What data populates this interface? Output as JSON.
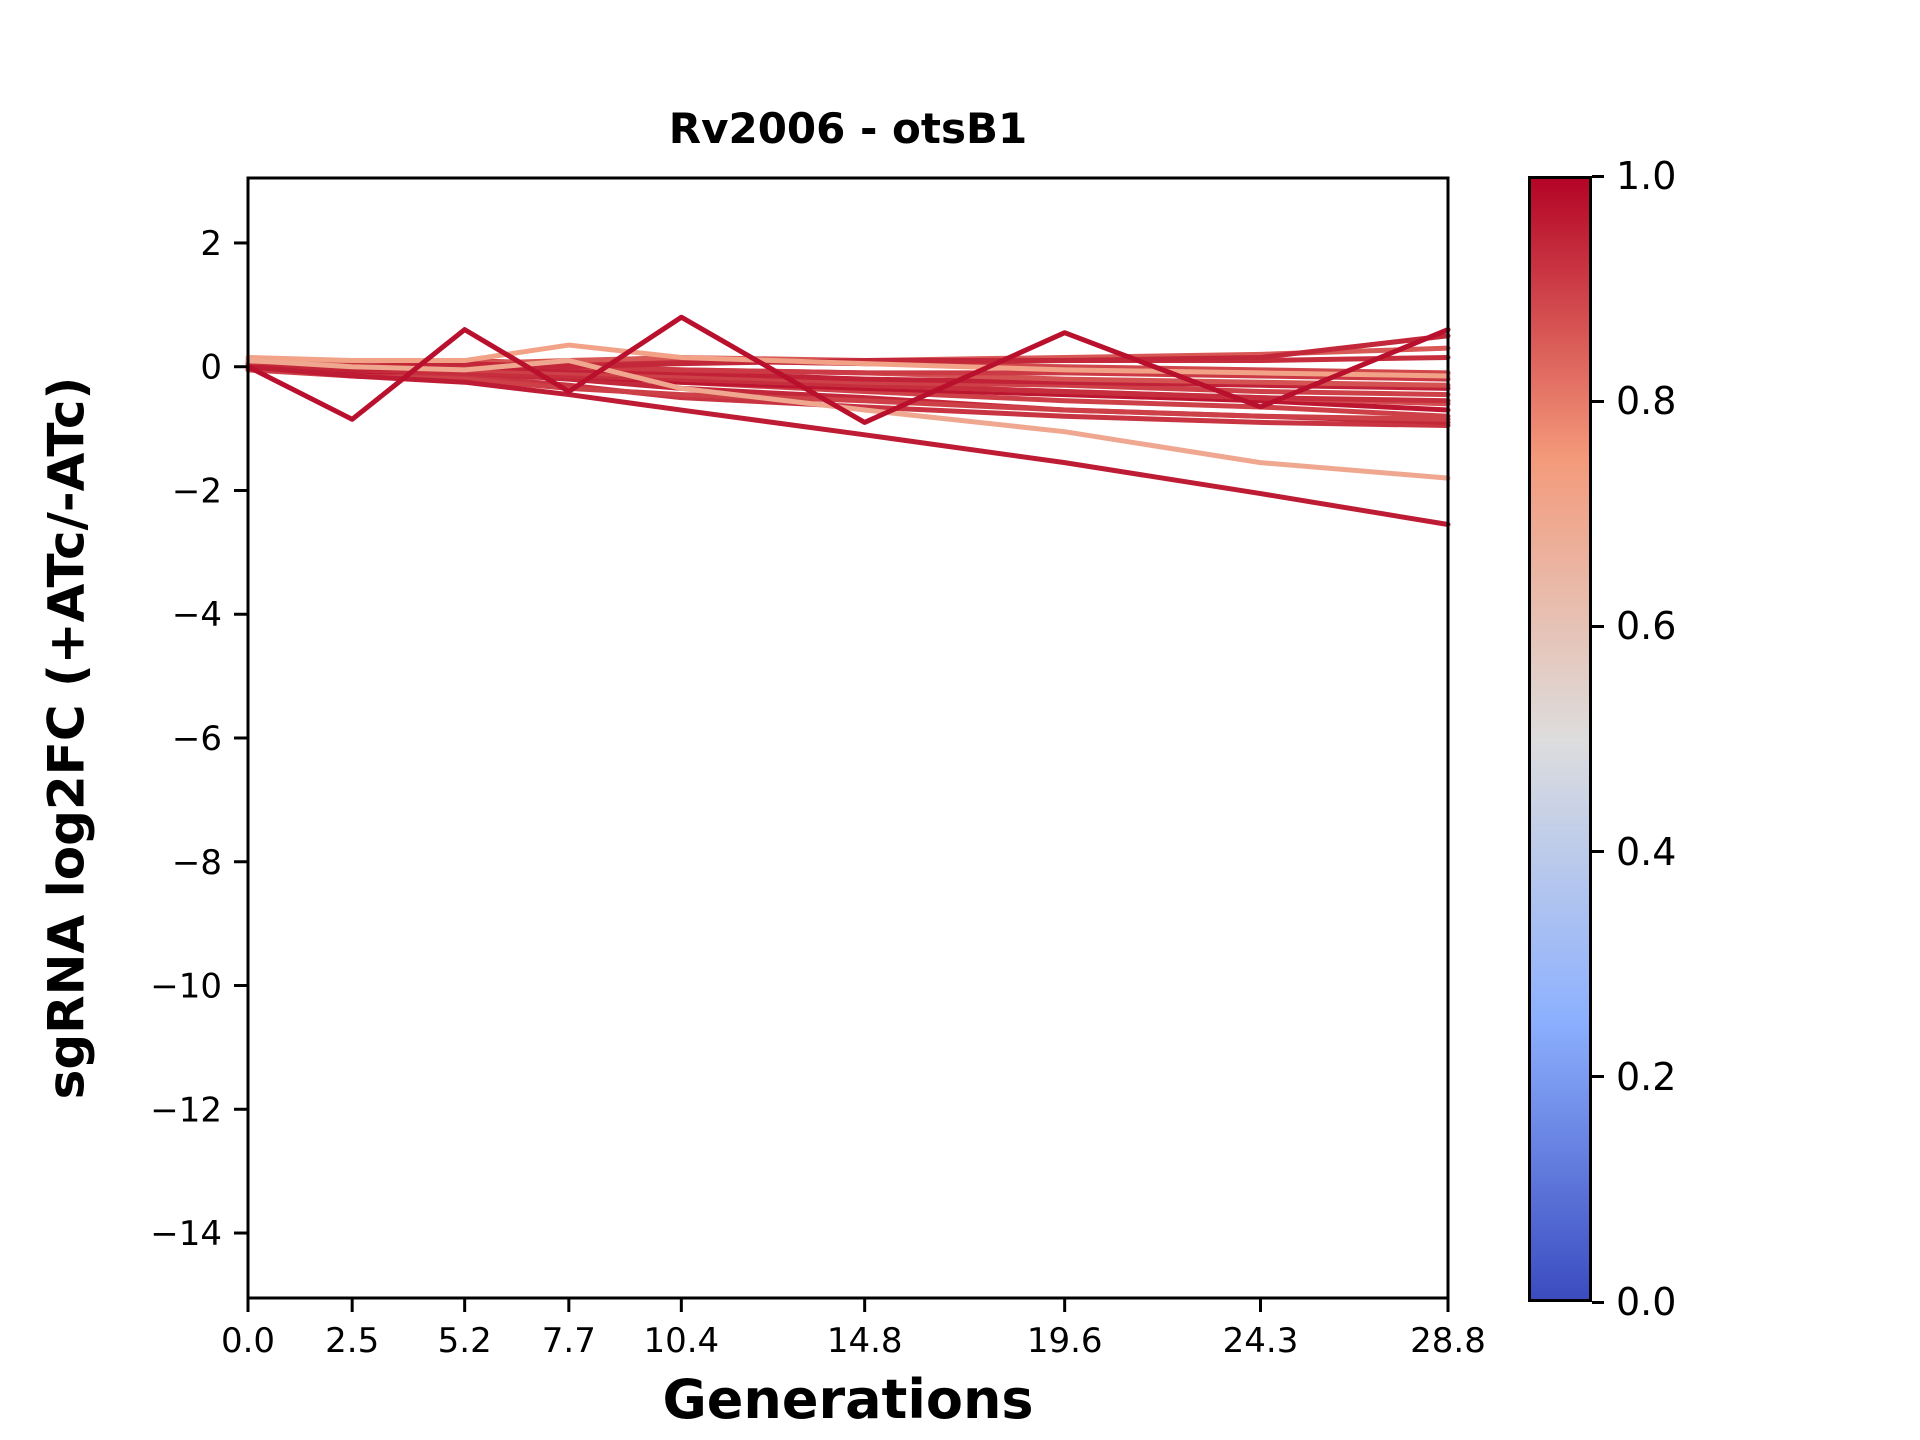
{
  "title": "Rv2006 - otsB1",
  "chart_data": {
    "type": "line",
    "title": "Rv2006 - otsB1",
    "xlabel": "Generations",
    "ylabel": "sgRNA log2FC (+ATc/-ATc)",
    "x": [
      0.0,
      2.5,
      5.2,
      7.7,
      10.4,
      14.8,
      19.6,
      24.3,
      28.8
    ],
    "xtick_labels": [
      "0.0",
      "2.5",
      "5.2",
      "7.7",
      "10.4",
      "14.8",
      "19.6",
      "24.3",
      "28.8"
    ],
    "ytick_values": [
      2,
      0,
      -2,
      -4,
      -6,
      -8,
      -10,
      -12,
      -14
    ],
    "ytick_labels": [
      "2",
      "0",
      "−2",
      "−4",
      "−6",
      "−8",
      "−10",
      "−12",
      "−14"
    ],
    "xlim": [
      0,
      28.8
    ],
    "ylim": [
      -15.05,
      3.05
    ],
    "grid": false,
    "legend": "none",
    "line_width": 5,
    "axis_color": "#000000",
    "colormap": "coolwarm",
    "colormap_stops": [
      [
        0.0,
        "#3B4CC0"
      ],
      [
        0.25,
        "#8DB0FE"
      ],
      [
        0.5,
        "#DDDDDD"
      ],
      [
        0.75,
        "#F49A7B"
      ],
      [
        1.0,
        "#B40426"
      ]
    ],
    "colorbar": {
      "min": 0.0,
      "max": 1.0,
      "ticks": [
        {
          "value": 1.0,
          "label": "1.0"
        },
        {
          "value": 0.8,
          "label": "0.8"
        },
        {
          "value": 0.6,
          "label": "0.6"
        },
        {
          "value": 0.4,
          "label": "0.4"
        },
        {
          "value": 0.2,
          "label": "0.2"
        },
        {
          "value": 0.0,
          "label": "0.0"
        }
      ]
    },
    "series": [
      {
        "value": 0.92,
        "y": [
          0.05,
          -0.1,
          -0.15,
          -0.3,
          -0.5,
          -0.65,
          -0.8,
          -0.9,
          -0.95
        ]
      },
      {
        "value": 0.94,
        "y": [
          0.0,
          -0.05,
          -0.1,
          -0.2,
          -0.35,
          -0.5,
          -0.7,
          -0.8,
          -0.9
        ]
      },
      {
        "value": 0.9,
        "y": [
          0.1,
          0.0,
          -0.05,
          -0.15,
          -0.25,
          -0.4,
          -0.55,
          -0.65,
          -0.8
        ]
      },
      {
        "value": 0.97,
        "y": [
          -0.05,
          -0.1,
          -0.05,
          -0.15,
          -0.25,
          -0.35,
          -0.45,
          -0.55,
          -0.7
        ]
      },
      {
        "value": 0.88,
        "y": [
          0.1,
          0.05,
          0.0,
          -0.1,
          -0.2,
          -0.3,
          -0.4,
          -0.5,
          -0.6
        ]
      },
      {
        "value": 0.93,
        "y": [
          0.0,
          -0.05,
          -0.1,
          -0.15,
          -0.2,
          -0.3,
          -0.4,
          -0.5,
          -0.55
        ]
      },
      {
        "value": 0.9,
        "y": [
          0.05,
          0.0,
          -0.05,
          -0.1,
          -0.15,
          -0.25,
          -0.3,
          -0.4,
          -0.45
        ]
      },
      {
        "value": 0.95,
        "y": [
          0.0,
          -0.05,
          0.0,
          -0.05,
          -0.1,
          -0.2,
          -0.25,
          -0.3,
          -0.35
        ]
      },
      {
        "value": 0.87,
        "y": [
          0.1,
          0.05,
          0.05,
          0.0,
          -0.05,
          -0.1,
          -0.2,
          -0.25,
          -0.3
        ]
      },
      {
        "value": 0.91,
        "y": [
          0.05,
          0.0,
          0.05,
          0.0,
          -0.05,
          -0.1,
          -0.1,
          -0.15,
          -0.2
        ]
      },
      {
        "value": 0.89,
        "y": [
          0.1,
          0.05,
          0.1,
          0.05,
          0.1,
          0.05,
          0.0,
          -0.05,
          -0.1
        ]
      },
      {
        "value": 0.93,
        "y": [
          0.0,
          0.05,
          0.0,
          0.05,
          0.1,
          0.05,
          0.1,
          0.1,
          0.15
        ]
      },
      {
        "value": 0.86,
        "y": [
          0.05,
          0.1,
          0.05,
          0.1,
          0.15,
          0.1,
          0.15,
          0.2,
          0.3
        ]
      },
      {
        "value": 0.94,
        "y": [
          0.0,
          0.0,
          0.05,
          0.0,
          0.05,
          0.1,
          0.1,
          0.15,
          0.5
        ]
      },
      {
        "value": 0.9,
        "y": [
          -0.05,
          -0.15,
          -0.2,
          -0.35,
          -0.45,
          -0.55,
          -0.7,
          -0.8,
          -0.85
        ]
      },
      {
        "value": 0.72,
        "y": [
          0.15,
          0.1,
          0.1,
          0.35,
          0.15,
          0.05,
          -0.05,
          -0.1,
          -0.15
        ]
      },
      {
        "value": 0.7,
        "y": [
          0.1,
          0.0,
          -0.05,
          0.1,
          -0.35,
          -0.7,
          -1.05,
          -1.55,
          -1.8
        ]
      },
      {
        "value": 0.96,
        "y": [
          0.0,
          -0.15,
          -0.25,
          -0.45,
          -0.7,
          -1.1,
          -1.55,
          -2.05,
          -2.55
        ]
      },
      {
        "value": 0.98,
        "y": [
          0.0,
          -0.85,
          0.6,
          -0.4,
          0.8,
          -0.9,
          0.55,
          -0.65,
          0.6
        ]
      }
    ]
  }
}
